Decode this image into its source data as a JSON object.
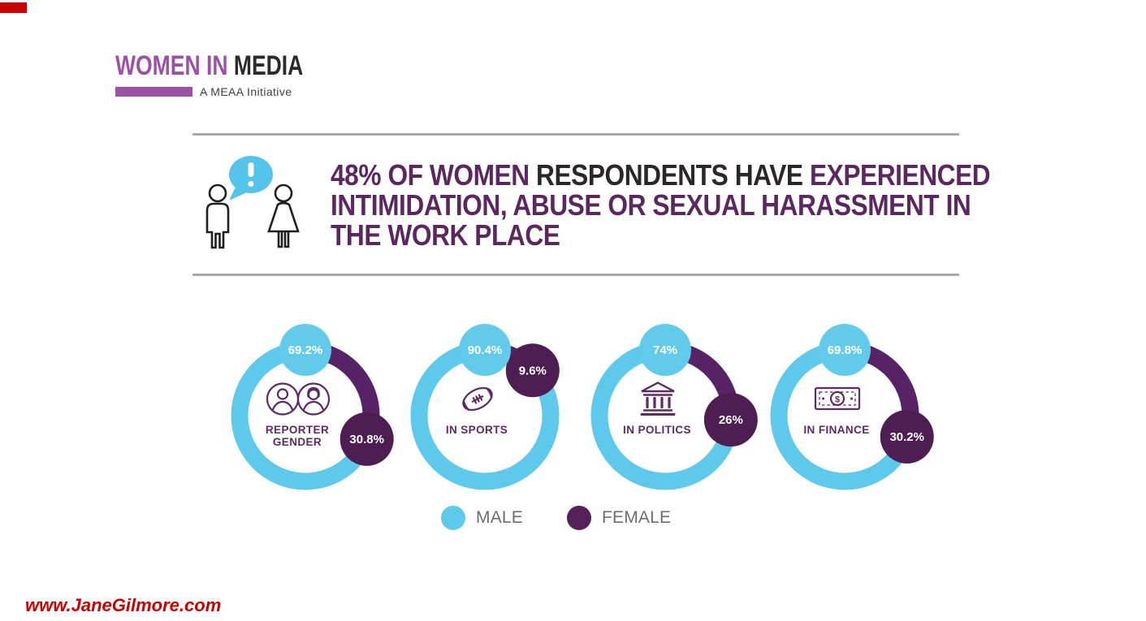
{
  "page": {
    "background": "#ffffff"
  },
  "corner_mark": {
    "color": "#c80000"
  },
  "branding": {
    "logo_primary": "WOMEN IN ",
    "logo_secondary": "MEDIA",
    "tagline": "A MEAA Initiative",
    "logo_primary_color": "#9b51a5",
    "logo_secondary_color": "#2b2b2b"
  },
  "headline": {
    "icon": "people-alert-icon",
    "speech_bubble_color": "#54c4ea",
    "purple_color": "#5b275f",
    "dark_color": "#2b2627",
    "lines": [
      [
        {
          "text": "48% OF WOMEN ",
          "color": "purple"
        },
        {
          "text": "RESPONDENTS HAVE ",
          "color": "dark"
        },
        {
          "text": "EXPERIENCED",
          "color": "purple"
        }
      ],
      [
        {
          "text": "INTIMIDATION, ABUSE OR SEXUAL HARASSMENT IN",
          "color": "purple"
        }
      ],
      [
        {
          "text": "THE WORK PLACE",
          "color": "purple"
        }
      ]
    ]
  },
  "chart_data": {
    "type": "donut",
    "note": "Four donut charts, % male vs female, female arc drawn clockwise from top",
    "legend": [
      {
        "label": "MALE",
        "color": "#5fc9eb"
      },
      {
        "label": "FEMALE",
        "color": "#542258"
      }
    ],
    "ring_colors": {
      "male": "#5fc9eb",
      "female": "#572364",
      "female_bubble": "#4e1e53",
      "male_bubble": "#62cbec"
    },
    "charts": [
      {
        "label": "REPORTER\nGENDER",
        "icon": "reporter-gender-icon",
        "series": [
          {
            "name": "MALE",
            "value": 69.2,
            "display": "69.2%"
          },
          {
            "name": "FEMALE",
            "value": 30.8,
            "display": "30.8%"
          }
        ]
      },
      {
        "label": "IN SPORTS",
        "icon": "football-icon",
        "series": [
          {
            "name": "MALE",
            "value": 90.4,
            "display": "90.4%"
          },
          {
            "name": "FEMALE",
            "value": 9.6,
            "display": "9.6%"
          }
        ]
      },
      {
        "label": "IN POLITICS",
        "icon": "bank-icon",
        "series": [
          {
            "name": "MALE",
            "value": 74,
            "display": "74%"
          },
          {
            "name": "FEMALE",
            "value": 26,
            "display": "26%"
          }
        ]
      },
      {
        "label": "IN FINANCE",
        "icon": "banknote-icon",
        "series": [
          {
            "name": "MALE",
            "value": 69.8,
            "display": "69.8%"
          },
          {
            "name": "FEMALE",
            "value": 30.2,
            "display": "30.2%"
          }
        ]
      }
    ]
  },
  "watermark": {
    "text": "www.JaneGilmore.com",
    "color": "#c80000"
  }
}
